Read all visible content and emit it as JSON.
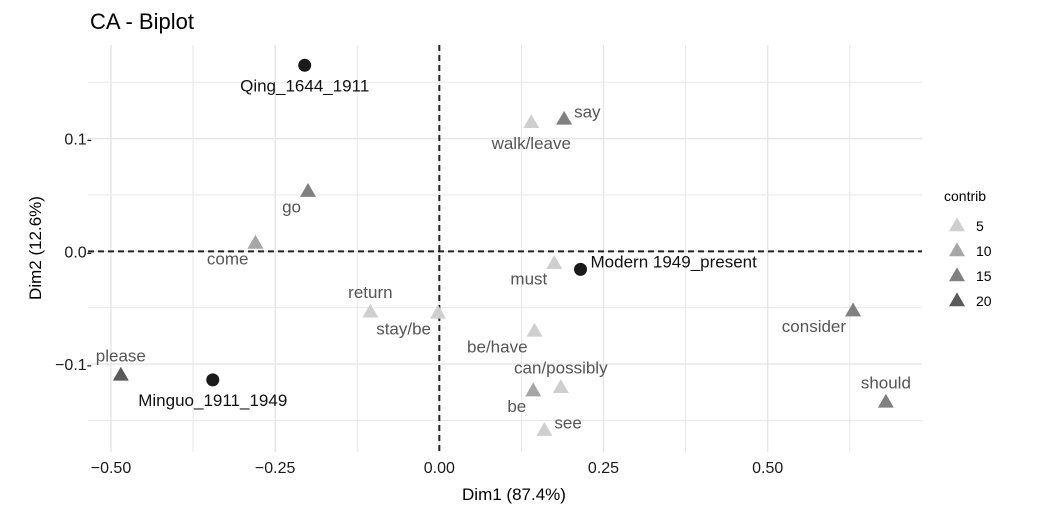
{
  "chart_data": {
    "type": "scatter",
    "title": "CA - Biplot",
    "xlabel": "Dim1 (87.4%)",
    "ylabel": "Dim2 (12.6%)",
    "xlim": [
      -0.535,
      0.735
    ],
    "ylim": [
      -0.178,
      0.183
    ],
    "x_ticks": [
      -0.5,
      -0.25,
      0.0,
      0.25,
      0.5
    ],
    "x_tick_labels": [
      "−0.50",
      "−0.25",
      "0.00",
      "0.25",
      "0.50"
    ],
    "y_ticks": [
      0.1,
      0.0,
      -0.1
    ],
    "y_tick_labels": [
      "0.1-",
      "0.0-",
      "−0.1-"
    ],
    "grid": true,
    "reference_lines": {
      "x": 0,
      "y": 0,
      "style": "dashed"
    },
    "colors": {
      "contrib_5": "#cfcfcf",
      "contrib_10": "#a6a6a6",
      "contrib_15": "#808080",
      "contrib_20": "#5a5a5a",
      "column_points": "#1a1a1a",
      "grid": "#e5e5e5",
      "reference_line": "#222222"
    },
    "legend": {
      "title": "contrib",
      "position": "right",
      "items": [
        {
          "label": "5",
          "contrib": 5
        },
        {
          "label": "10",
          "contrib": 10
        },
        {
          "label": "15",
          "contrib": 15
        },
        {
          "label": "20",
          "contrib": 20
        }
      ]
    },
    "row_points": [
      {
        "label": "say",
        "x": 0.19,
        "y": 0.117,
        "contrib": 15,
        "anchor": "right"
      },
      {
        "label": "walk/leave",
        "x": 0.14,
        "y": 0.114,
        "contrib": 5,
        "anchor": "below"
      },
      {
        "label": "go",
        "x": -0.2,
        "y": 0.053,
        "contrib": 15,
        "anchor": "below-left"
      },
      {
        "label": "come",
        "x": -0.28,
        "y": 0.007,
        "contrib": 10,
        "anchor": "below-left"
      },
      {
        "label": "must",
        "x": 0.175,
        "y": -0.011,
        "contrib": 5,
        "anchor": "below-left"
      },
      {
        "label": "return",
        "x": -0.105,
        "y": -0.054,
        "contrib": 5,
        "anchor": "above"
      },
      {
        "label": "stay/be",
        "x": -0.002,
        "y": -0.055,
        "contrib": 5,
        "anchor": "below-left"
      },
      {
        "label": "be/have",
        "x": 0.145,
        "y": -0.071,
        "contrib": 5,
        "anchor": "below-left"
      },
      {
        "label": "consider",
        "x": 0.63,
        "y": -0.053,
        "contrib": 15,
        "anchor": "below-left"
      },
      {
        "label": "please",
        "x": -0.485,
        "y": -0.11,
        "contrib": 20,
        "anchor": "above"
      },
      {
        "label": "can/possibly",
        "x": 0.185,
        "y": -0.121,
        "contrib": 5,
        "anchor": "above"
      },
      {
        "label": "be",
        "x": 0.143,
        "y": -0.124,
        "contrib": 10,
        "anchor": "below-left"
      },
      {
        "label": "should",
        "x": 0.68,
        "y": -0.134,
        "contrib": 15,
        "anchor": "above"
      },
      {
        "label": "see",
        "x": 0.16,
        "y": -0.159,
        "contrib": 5,
        "anchor": "right"
      }
    ],
    "column_points": [
      {
        "label": "Qing_1644_1911",
        "x": -0.205,
        "y": 0.165,
        "anchor": "below"
      },
      {
        "label": "Modern 1949_present",
        "x": 0.215,
        "y": -0.016,
        "anchor": "right"
      },
      {
        "label": "Minguo_1911_1949",
        "x": -0.345,
        "y": -0.114,
        "anchor": "below"
      }
    ]
  }
}
